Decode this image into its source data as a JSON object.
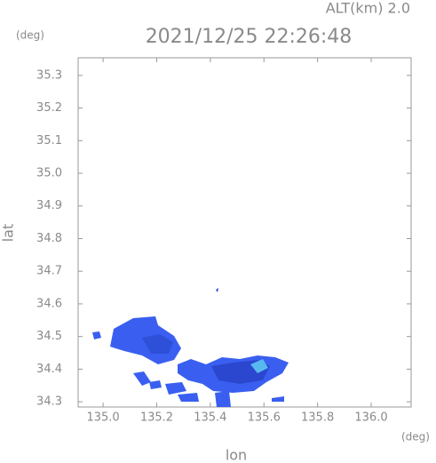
{
  "chart_data": {
    "type": "map",
    "altitude_label": "ALT(km) 2.0",
    "title": "2021/12/25 22:26:48",
    "y_unit": "(deg)",
    "x_unit": "(deg)",
    "xlabel": "lon",
    "ylabel": "lat",
    "xlim": [
      134.907,
      136.149
    ],
    "ylim": [
      34.284,
      35.354
    ],
    "xticks": [
      {
        "value": 135,
        "label": "135.0"
      },
      135.2,
      135.4,
      135.6,
      135.8,
      {
        "value": 136,
        "label": "136.0"
      }
    ],
    "yticks": [
      34.3,
      34.4,
      34.5,
      34.6,
      34.7,
      34.8,
      34.9,
      {
        "value": 35,
        "label": "35.0"
      },
      35.1,
      35.2,
      35.3
    ]
  }
}
